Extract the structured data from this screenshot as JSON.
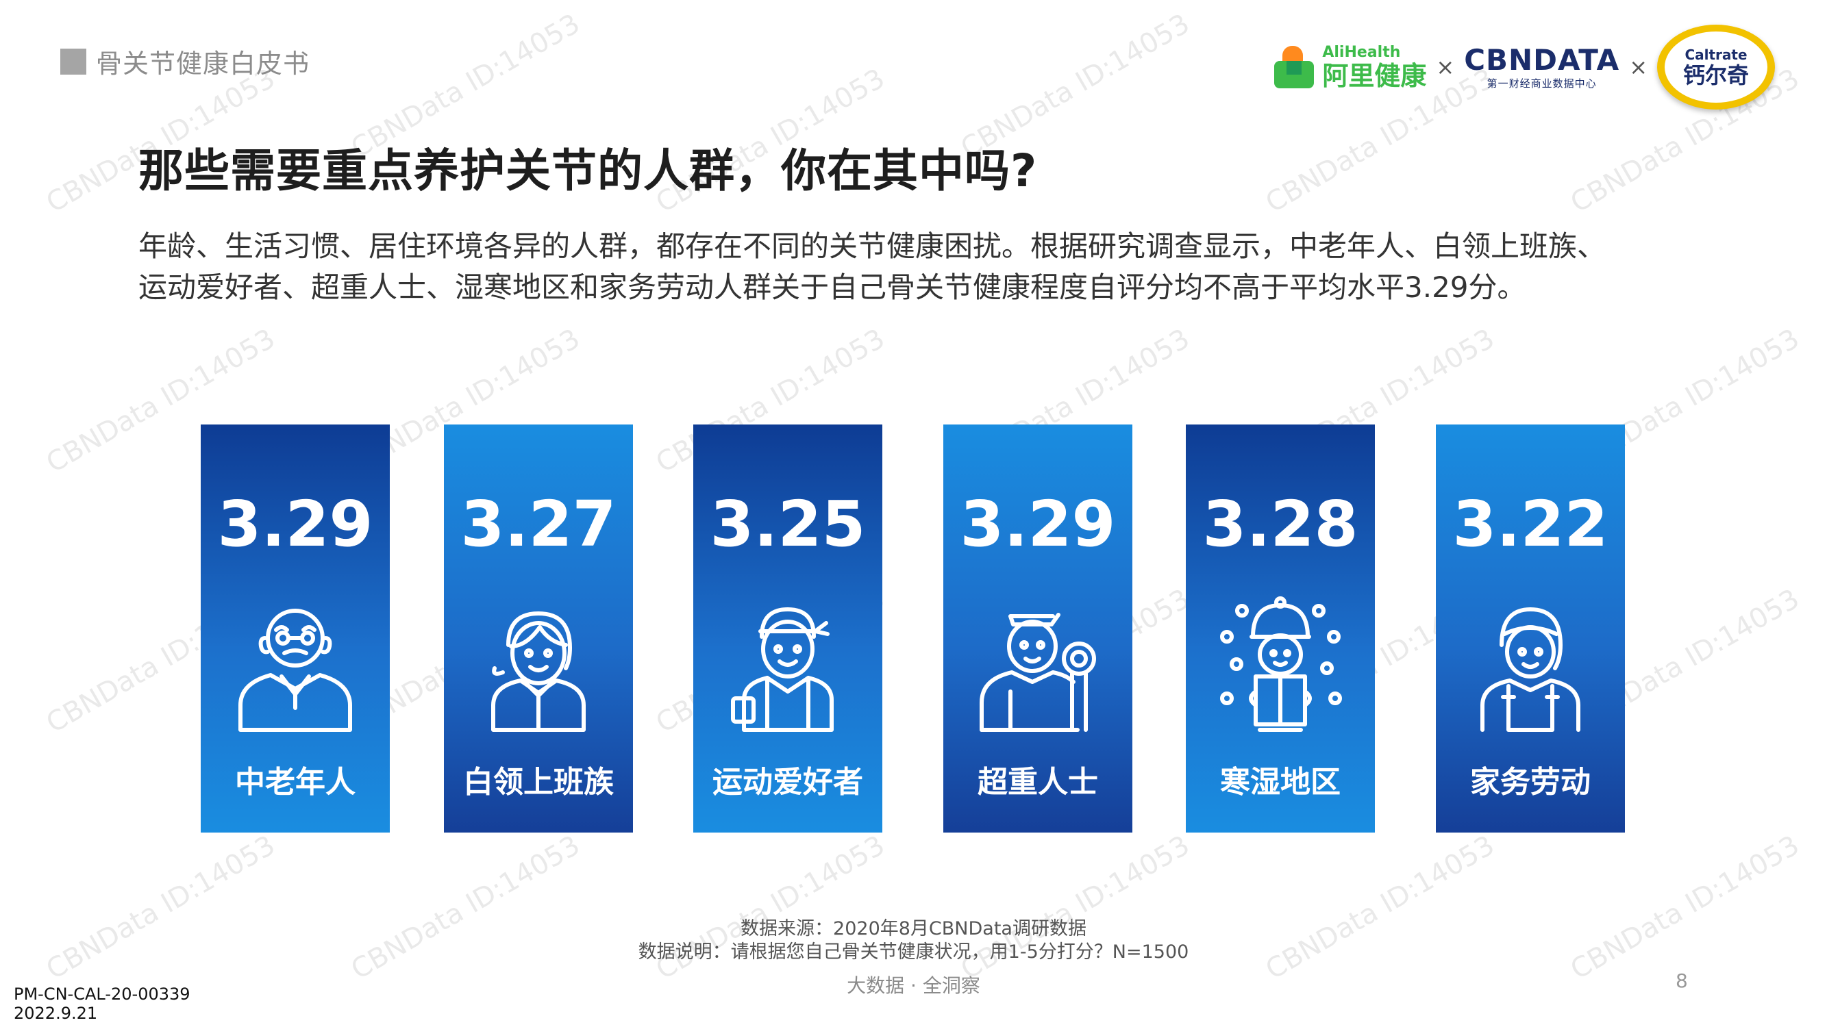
{
  "header": {
    "report_name": "骨关节健康白皮书"
  },
  "logos": {
    "alihealth_en": "AliHealth",
    "alihealth_cn": "阿里健康",
    "times": "×",
    "cbndata": "CBNDATA",
    "cbndata_sub": "第一财经商业数据中心",
    "caltrate_en": "Caltrate",
    "caltrate_cn": "钙尔奇"
  },
  "title": "那些需要重点养护关节的人群，你在其中吗?",
  "description_line1": "年龄、生活习惯、居住环境各异的人群，都存在不同的关节健康困扰。根据研究调查显示，中老年人、白领上班族、",
  "description_line2": "运动爱好者、超重人士、湿寒地区和家务劳动人群关于自己骨关节健康程度自评分均不高于平均水平3.29分。",
  "groups": [
    {
      "value": "3.29",
      "label": "中老年人",
      "icon": "elderly-man-icon"
    },
    {
      "value": "3.27",
      "label": "白领上班族",
      "icon": "office-worker-icon"
    },
    {
      "value": "3.25",
      "label": "运动爱好者",
      "icon": "athlete-icon"
    },
    {
      "value": "3.29",
      "label": "超重人士",
      "icon": "overweight-person-icon"
    },
    {
      "value": "3.28",
      "label": "寒湿地区",
      "icon": "cold-region-person-icon"
    },
    {
      "value": "3.22",
      "label": "家务劳动",
      "icon": "housekeeper-icon"
    }
  ],
  "footnotes": {
    "source": "数据来源：2020年8月CBNData调研数据",
    "explanation": "数据说明：请根据您自己骨关节健康状况，用1-5分打分？N=1500"
  },
  "bottom_tagline": "大数据 · 全洞察",
  "page_number": "8",
  "document_code": "PM-CN-CAL-20-00339",
  "document_date": "2022.9.21",
  "watermark": "CBNData ID:14053",
  "colors": {
    "card_dark": "#0e3c94",
    "card_light": "#1a8de0",
    "ali_green": "#3dbb4a",
    "cbn_navy": "#1b2d6b",
    "caltrate_gold": "#f2c200"
  }
}
